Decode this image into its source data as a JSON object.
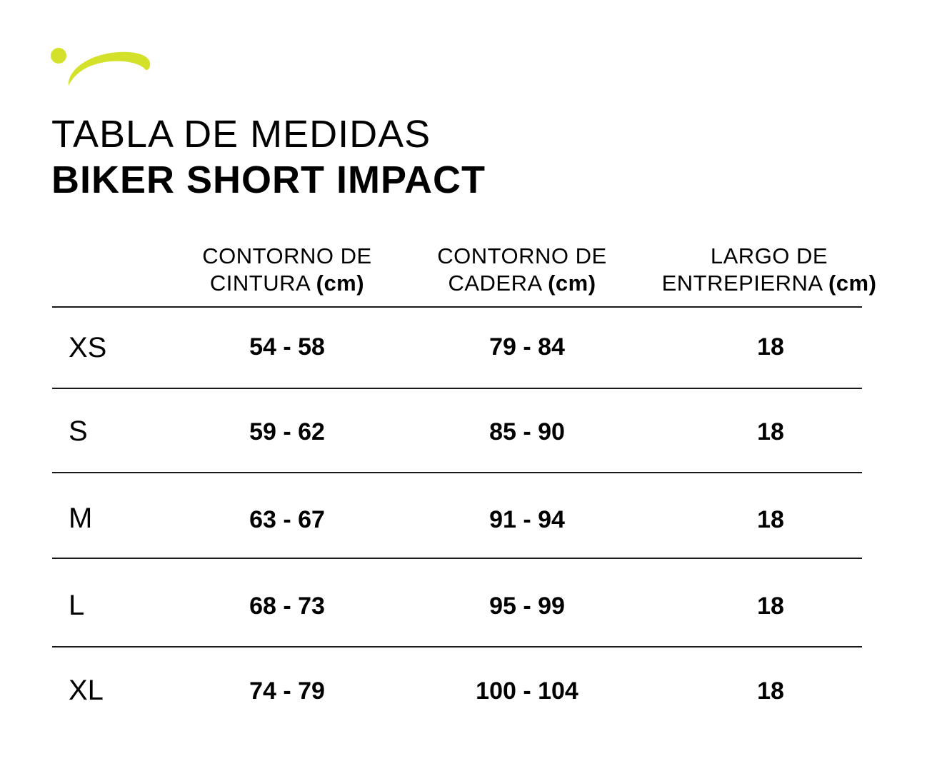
{
  "brand": {
    "accent_color": "#d4e12a",
    "logo_icon": "swoosh-dot-logo"
  },
  "title": {
    "line1": "TABLA DE MEDIDAS",
    "line2": "BIKER SHORT IMPACT"
  },
  "table": {
    "headers": [
      {
        "line1": "CONTORNO DE",
        "line2": "CINTURA",
        "unit": "(cm)"
      },
      {
        "line1": "CONTORNO DE",
        "line2": "CADERA",
        "unit": "(cm)"
      },
      {
        "line1": "LARGO DE",
        "line2": "ENTREPIERNA",
        "unit": "(cm)"
      }
    ],
    "rows": [
      {
        "size": "XS",
        "waist": "54 - 58",
        "hip": "79 - 84",
        "inseam": "18"
      },
      {
        "size": "S",
        "waist": "59 - 62",
        "hip": "85 - 90",
        "inseam": "18"
      },
      {
        "size": "M",
        "waist": "63 - 67",
        "hip": "91 - 94",
        "inseam": "18"
      },
      {
        "size": "L",
        "waist": "68 - 73",
        "hip": "95 - 99",
        "inseam": "18"
      },
      {
        "size": "XL",
        "waist": "74 - 79",
        "hip": "100 - 104",
        "inseam": "18"
      }
    ]
  }
}
